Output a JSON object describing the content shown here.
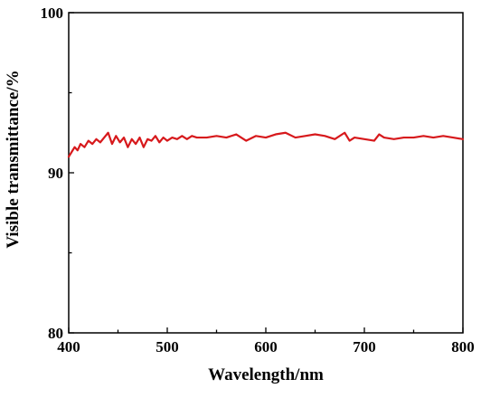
{
  "chart_data": {
    "type": "line",
    "title": "",
    "xlabel": "Wavelength/nm",
    "ylabel": "Visible transmittance/%",
    "xlim": [
      400,
      800
    ],
    "ylim": [
      80,
      100
    ],
    "x_ticks": [
      400,
      500,
      600,
      700,
      800
    ],
    "y_ticks": [
      80,
      90,
      100
    ],
    "grid": false,
    "legend": "none",
    "series": [
      {
        "color": "#d7191c",
        "x": [
          400,
          403,
          406,
          409,
          412,
          416,
          420,
          424,
          428,
          432,
          436,
          440,
          444,
          448,
          452,
          456,
          460,
          464,
          468,
          472,
          476,
          480,
          484,
          488,
          492,
          496,
          500,
          505,
          510,
          515,
          520,
          525,
          530,
          540,
          550,
          560,
          570,
          580,
          590,
          600,
          610,
          620,
          630,
          640,
          650,
          660,
          670,
          680,
          685,
          690,
          700,
          710,
          715,
          720,
          730,
          740,
          750,
          760,
          770,
          780,
          790,
          800
        ],
        "y": [
          91.0,
          91.3,
          91.6,
          91.4,
          91.8,
          91.6,
          92.0,
          91.8,
          92.1,
          91.9,
          92.2,
          92.5,
          91.8,
          92.3,
          91.9,
          92.2,
          91.6,
          92.1,
          91.8,
          92.2,
          91.6,
          92.1,
          92.0,
          92.3,
          91.9,
          92.2,
          92.0,
          92.2,
          92.1,
          92.3,
          92.1,
          92.3,
          92.2,
          92.2,
          92.3,
          92.2,
          92.4,
          92.0,
          92.3,
          92.2,
          92.4,
          92.5,
          92.2,
          92.3,
          92.4,
          92.3,
          92.1,
          92.5,
          92.0,
          92.2,
          92.1,
          92.0,
          92.4,
          92.2,
          92.1,
          92.2,
          92.2,
          92.3,
          92.2,
          92.3,
          92.2,
          92.1
        ]
      }
    ]
  }
}
